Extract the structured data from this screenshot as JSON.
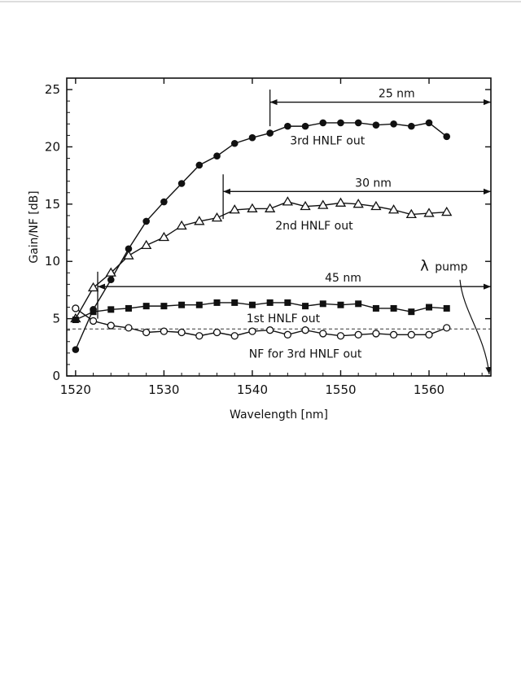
{
  "chart_data": {
    "type": "line",
    "xlabel": "Wavelength [nm]",
    "ylabel": "Gain/NF [dB]",
    "xlim": [
      1519,
      1567
    ],
    "ylim": [
      0,
      26
    ],
    "xticks": [
      1520,
      1530,
      1540,
      1550,
      1560
    ],
    "yticks": [
      0,
      5,
      10,
      15,
      20,
      25
    ],
    "x": [
      1520,
      1522,
      1524,
      1526,
      1528,
      1530,
      1532,
      1534,
      1536,
      1538,
      1540,
      1542,
      1544,
      1546,
      1548,
      1550,
      1552,
      1554,
      1556,
      1558,
      1560,
      1562
    ],
    "series": [
      {
        "name": "3rd HNLF out",
        "marker": "filled-circle",
        "values": [
          2.3,
          5.8,
          8.4,
          11.1,
          13.5,
          15.2,
          16.8,
          18.4,
          19.2,
          20.3,
          20.8,
          21.2,
          21.8,
          21.8,
          22.1,
          22.1,
          22.1,
          21.9,
          22.0,
          21.8,
          22.1,
          20.9
        ]
      },
      {
        "name": "2nd HNLF out",
        "marker": "open-triangle",
        "values": [
          5.0,
          7.7,
          9.0,
          10.5,
          11.4,
          12.1,
          13.1,
          13.5,
          13.8,
          14.5,
          14.6,
          14.6,
          15.2,
          14.8,
          14.9,
          15.1,
          15.0,
          14.8,
          14.5,
          14.1,
          14.2,
          14.3
        ]
      },
      {
        "name": "1st HNLF out",
        "marker": "filled-square",
        "values": [
          4.9,
          5.6,
          5.8,
          5.9,
          6.1,
          6.1,
          6.2,
          6.2,
          6.4,
          6.4,
          6.2,
          6.4,
          6.4,
          6.1,
          6.3,
          6.2,
          6.3,
          5.9,
          5.9,
          5.6,
          6.0,
          5.9
        ]
      },
      {
        "name": "NF for 3rd HNLF out",
        "marker": "open-circle",
        "values": [
          5.9,
          4.8,
          4.4,
          4.2,
          3.8,
          3.9,
          3.8,
          3.5,
          3.8,
          3.5,
          3.9,
          4.0,
          3.6,
          4.0,
          3.7,
          3.5,
          3.6,
          3.7,
          3.6,
          3.6,
          3.6,
          4.2
        ]
      }
    ],
    "reference_line": {
      "y": 4.1,
      "style": "dashed"
    },
    "spans": [
      {
        "label": "25 nm",
        "x_start": 1542,
        "x_end": 1567,
        "y": 23.9,
        "marker_top": 25.0,
        "marker_bottom": 21.8
      },
      {
        "label": "30 nm",
        "x_start": 1536.7,
        "x_end": 1567,
        "y": 16.1,
        "marker_top": 17.6,
        "marker_bottom": 13.7
      },
      {
        "label": "45 nm",
        "x_start": 1522.5,
        "x_end": 1567,
        "y": 7.8,
        "marker_top": 9.1,
        "marker_bottom": 5.0
      }
    ],
    "annotations": [
      {
        "text": "3rd HNLF out",
        "x": 1548.5,
        "y": 20.2
      },
      {
        "text": "2nd HNLF out",
        "x": 1547.0,
        "y": 12.8
      },
      {
        "text": "1st HNLF out",
        "x": 1543.5,
        "y": 4.7
      },
      {
        "text": "NF for 3rd HNLF out",
        "x": 1546.0,
        "y": 1.6
      }
    ],
    "pump_label": {
      "symbol": "λ",
      "text": "pump",
      "x": 1559.0,
      "y": 9.2
    },
    "pump_arrow": {
      "from_x": 1563.5,
      "from_y": 8.4,
      "to_x": 1567,
      "to_y": 0
    },
    "grid": false
  }
}
